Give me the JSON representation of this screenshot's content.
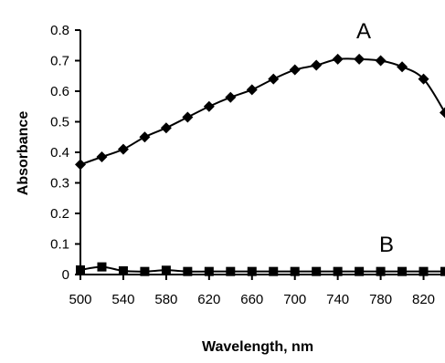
{
  "chart_data": {
    "type": "line",
    "title": "",
    "xlabel": "Wavelength, nm",
    "ylabel": "Absorbance",
    "xlim": [
      500,
      840
    ],
    "ylim": [
      0,
      0.8
    ],
    "x_ticks": [
      "500",
      "540",
      "580",
      "620",
      "660",
      "700",
      "740",
      "780",
      "820"
    ],
    "y_ticks": [
      "0",
      "0.1",
      "0.2",
      "0.3",
      "0.4",
      "0.5",
      "0.6",
      "0.7",
      "0.8"
    ],
    "grid": false,
    "legend": "none",
    "annotations": [
      "A",
      "B"
    ],
    "series": [
      {
        "marker": "diamond",
        "x": [
          500,
          520,
          540,
          560,
          580,
          600,
          620,
          640,
          660,
          680,
          700,
          720,
          740,
          760,
          780,
          800,
          820,
          840
        ],
        "y": [
          0.36,
          0.385,
          0.41,
          0.45,
          0.48,
          0.515,
          0.55,
          0.58,
          0.605,
          0.64,
          0.67,
          0.685,
          0.705,
          0.705,
          0.7,
          0.68,
          0.64,
          0.53
        ]
      },
      {
        "marker": "square",
        "x": [
          500,
          520,
          540,
          560,
          580,
          600,
          620,
          640,
          660,
          680,
          700,
          720,
          740,
          760,
          780,
          800,
          820,
          840
        ],
        "y": [
          0.015,
          0.025,
          0.012,
          0.01,
          0.014,
          0.01,
          0.01,
          0.01,
          0.01,
          0.01,
          0.01,
          0.01,
          0.01,
          0.01,
          0.01,
          0.01,
          0.01,
          0.01
        ]
      }
    ],
    "colors": {
      "line": "#000000",
      "marker": "#000000",
      "background": "#ffffff"
    }
  }
}
